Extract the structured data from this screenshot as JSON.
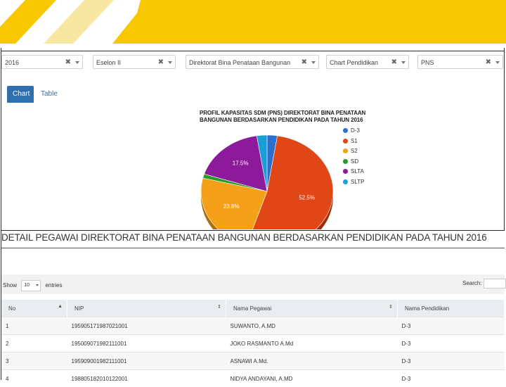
{
  "filters": [
    {
      "value": "2016",
      "clear": "✖"
    },
    {
      "value": "Eselon II",
      "clear": "✖"
    },
    {
      "value": "Direktorat Bina Penataan Bangunan",
      "clear": "✖"
    },
    {
      "value": "Chart Pendidikan",
      "clear": "✖"
    },
    {
      "value": "PNS",
      "clear": "✖"
    }
  ],
  "tabs": [
    {
      "label": "Chart",
      "active": true
    },
    {
      "label": "Table",
      "active": false
    }
  ],
  "chart_data": {
    "type": "pie",
    "title_line1": "PROFIL KAPASITAS SDM (PNS) DIREKTORAT BINA PENATAAN",
    "title_line2": "BANGUNAN BERDASARKAN PENDIDIKAN PADA TAHUN 2016",
    "slices": [
      {
        "label": "D-3",
        "value": 2.5,
        "color": "#2b6fd1",
        "data_label": ""
      },
      {
        "label": "S1",
        "value": 52.5,
        "color": "#e04616",
        "data_label": "52.5%"
      },
      {
        "label": "S2",
        "value": 23.8,
        "color": "#f4a018",
        "data_label": "23.8%"
      },
      {
        "label": "SD",
        "value": 1.2,
        "color": "#2a9a2a",
        "data_label": ""
      },
      {
        "label": "SLTA",
        "value": 17.5,
        "color": "#8d1a9b",
        "data_label": "17.5%"
      },
      {
        "label": "SLTP",
        "value": 2.5,
        "color": "#1aa0d8",
        "data_label": ""
      }
    ],
    "legend_position": "right"
  },
  "detail_title": "DETAIL PEGAWAI DIREKTORAT BINA PENATAAN BANGUNAN BERDASARKAN PENDIDIKAN PADA TAHUN 2016",
  "table_controls": {
    "show_label": "Show",
    "entries_value": "10",
    "entries_label": "entries",
    "search_label": "Search:"
  },
  "table": {
    "headers": [
      "No",
      "NIP",
      "Nama Pegawai",
      "Nama Pendidikan"
    ],
    "rows": [
      [
        "1",
        "195905171987021001",
        "SUWANTO, A.MD",
        "D-3"
      ],
      [
        "2",
        "195009071982111001",
        "JOKO RASMANTO A.Md",
        "D-3"
      ],
      [
        "3",
        "195909001982111001",
        "ASNAWI A.Md.",
        "D-3"
      ],
      [
        "4",
        "198805182010122001",
        "NIDYA ANDAYANI, A.MD",
        "D-3"
      ]
    ]
  },
  "colors": {
    "banner_yellow": "#f7c800",
    "banner_light": "#f8e7a0",
    "tab_blue": "#2f6fad"
  }
}
